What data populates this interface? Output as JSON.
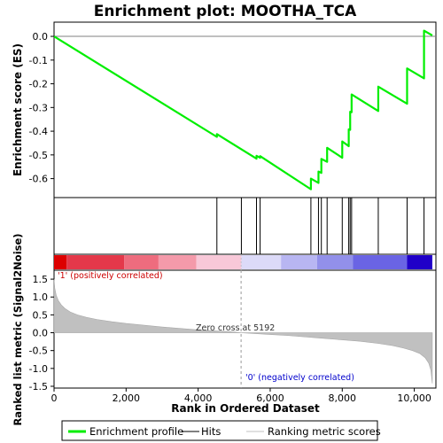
{
  "chart_data": {
    "type": "line",
    "title": "Enrichment plot: MOOTHA_TCA",
    "xlabel": "Rank in Ordered Dataset",
    "ylabel_top": "Enrichment score (ES)",
    "ylabel_bottom": "Ranked list metric (Signal2Noise)",
    "x_ticks": [
      0,
      2000,
      4000,
      6000,
      8000,
      10000
    ],
    "x_tick_labels": [
      "0",
      "2,000",
      "4,000",
      "6,000",
      "8,000",
      "10,000"
    ],
    "xlim": [
      0,
      10600
    ],
    "es_ylim": [
      -0.68,
      0.06
    ],
    "es_ticks": [
      0.0,
      -0.1,
      -0.2,
      -0.3,
      -0.4,
      -0.5,
      -0.6
    ],
    "es_tick_labels": [
      "0.0",
      "-0.1",
      "-0.2",
      "-0.3",
      "-0.4",
      "-0.5",
      "-0.6"
    ],
    "metric_ylim": [
      -1.55,
      1.75
    ],
    "metric_ticks": [
      1.5,
      1.0,
      0.5,
      0.0,
      -0.5,
      -1.0,
      -1.5
    ],
    "metric_tick_labels": [
      "1.5",
      "1.0",
      "0.5",
      "0.0",
      "-0.5",
      "-1.0",
      "-1.5"
    ],
    "n_genes": 10500,
    "hits": [
      4520,
      5200,
      5620,
      5720,
      7130,
      7340,
      7420,
      7580,
      8000,
      8180,
      8220,
      8260,
      9000,
      9800,
      10270
    ],
    "enrichment_profile": {
      "x": [
        0,
        4520,
        4520,
        5620,
        5620,
        5720,
        5720,
        7130,
        7130,
        7340,
        7340,
        7420,
        7420,
        7580,
        7580,
        8000,
        8000,
        8180,
        8180,
        8220,
        8220,
        8260,
        8260,
        9000,
        9000,
        9800,
        9800,
        10270,
        10270,
        10500
      ],
      "y": [
        0.0,
        -0.424,
        -0.412,
        -0.516,
        -0.504,
        -0.512,
        -0.505,
        -0.645,
        -0.6,
        -0.618,
        -0.57,
        -0.576,
        -0.517,
        -0.529,
        -0.47,
        -0.512,
        -0.443,
        -0.463,
        -0.392,
        -0.394,
        -0.318,
        -0.32,
        -0.245,
        -0.315,
        -0.212,
        -0.284,
        -0.135,
        -0.177,
        0.024,
        0.004
      ]
    },
    "ranking_metric": {
      "x": [
        0,
        20,
        60,
        120,
        200,
        300,
        450,
        650,
        900,
        1200,
        1600,
        2000,
        2500,
        3000,
        3500,
        4000,
        4500,
        5000,
        5192,
        5500,
        6000,
        6500,
        7000,
        7500,
        8000,
        8500,
        9000,
        9400,
        9700,
        9950,
        10150,
        10300,
        10400,
        10460,
        10500
      ],
      "y": [
        1.5,
        1.25,
        1.05,
        0.9,
        0.78,
        0.68,
        0.58,
        0.5,
        0.43,
        0.37,
        0.31,
        0.26,
        0.21,
        0.16,
        0.12,
        0.08,
        0.05,
        0.02,
        0.0,
        -0.02,
        -0.05,
        -0.08,
        -0.12,
        -0.16,
        -0.2,
        -0.24,
        -0.3,
        -0.36,
        -0.43,
        -0.5,
        -0.58,
        -0.7,
        -0.85,
        -1.05,
        -1.42
      ]
    },
    "heatmap_segments": [
      {
        "x0": 0,
        "x1": 350,
        "color": "#dd0000"
      },
      {
        "x0": 350,
        "x1": 1950,
        "color": "#e4384a"
      },
      {
        "x0": 1950,
        "x1": 2900,
        "color": "#ee6c7e"
      },
      {
        "x0": 2900,
        "x1": 3950,
        "color": "#f49aaa"
      },
      {
        "x0": 3950,
        "x1": 5200,
        "color": "#f8c8d8"
      },
      {
        "x0": 5200,
        "x1": 6300,
        "color": "#dcdaf8"
      },
      {
        "x0": 6300,
        "x1": 7300,
        "color": "#b8b6f2"
      },
      {
        "x0": 7300,
        "x1": 8300,
        "color": "#9290ea"
      },
      {
        "x0": 8300,
        "x1": 9800,
        "color": "#6a64e4"
      },
      {
        "x0": 9800,
        "x1": 10500,
        "color": "#2000c8"
      }
    ],
    "positive_label": "'1' (positively correlated)",
    "negative_label": "'0' (negatively correlated)",
    "zero_cross_label": "Zero cross at 5192",
    "zero_cross": 5192,
    "legend": [
      "Enrichment profile",
      "Hits",
      "Ranking metric scores"
    ],
    "colors": {
      "profile": "#00ee00",
      "hits": "#000000",
      "metric_fill": "#c0c0c0",
      "positive_text": "#cc0000",
      "negative_text": "#0000cc"
    }
  }
}
